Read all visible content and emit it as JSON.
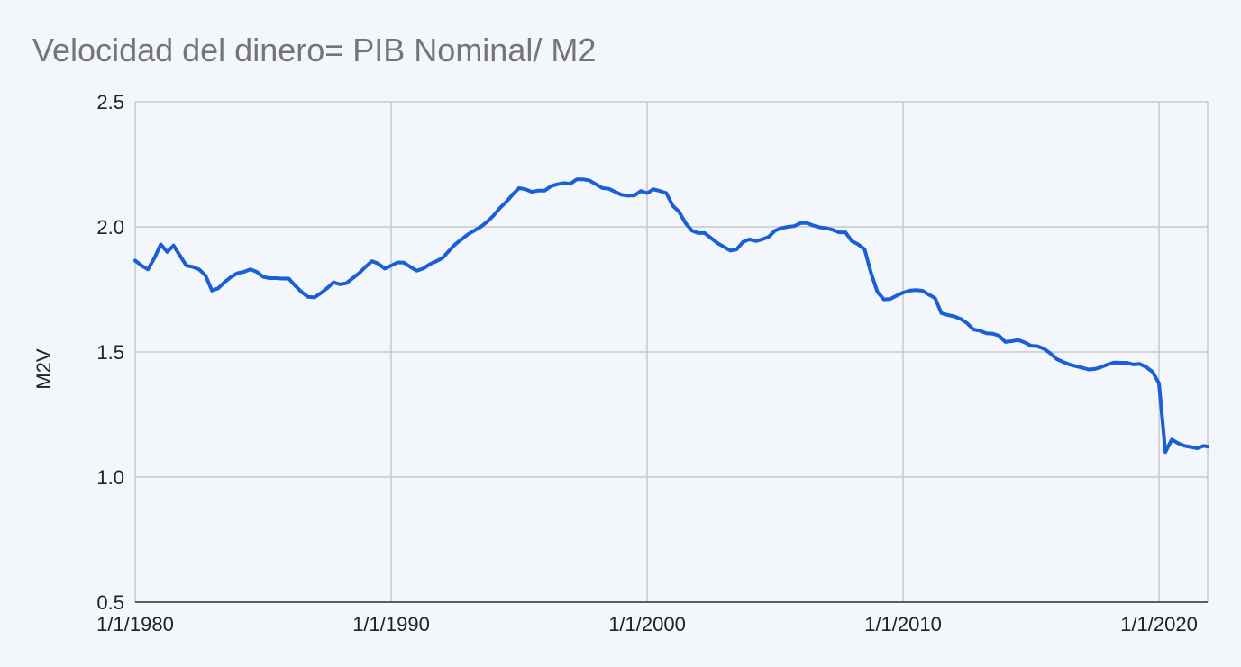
{
  "chart_data": {
    "type": "line",
    "title": "Velocidad del dinero= PIB Nominal/ M2",
    "xlabel": "",
    "ylabel": "M2V",
    "xlim": [
      1980.0,
      2021.9
    ],
    "ylim": [
      0.5,
      2.5
    ],
    "x_ticks": [
      "1/1/1980",
      "1/1/1990",
      "1/1/2000",
      "1/1/2010",
      "1/1/2020"
    ],
    "x_tick_values": [
      1980,
      1990,
      2000,
      2010,
      2020
    ],
    "y_ticks": [
      "0.5",
      "1.0",
      "1.5",
      "2.0",
      "2.5"
    ],
    "y_tick_values": [
      0.5,
      1.0,
      1.5,
      2.0,
      2.5
    ],
    "grid": true,
    "colors": {
      "series": "#1a5fd6",
      "grid": "#c9c9c9",
      "background": "#f3f6fb",
      "title": "#757575"
    },
    "series": [
      {
        "name": "",
        "points": [
          [
            1980.0,
            1.865
          ],
          [
            1980.25,
            1.845
          ],
          [
            1980.5,
            1.83
          ],
          [
            1980.75,
            1.875
          ],
          [
            1981.0,
            1.93
          ],
          [
            1981.25,
            1.9
          ],
          [
            1981.5,
            1.925
          ],
          [
            1981.75,
            1.885
          ],
          [
            1982.0,
            1.845
          ],
          [
            1982.25,
            1.84
          ],
          [
            1982.5,
            1.83
          ],
          [
            1982.75,
            1.805
          ],
          [
            1983.0,
            1.745
          ],
          [
            1983.25,
            1.755
          ],
          [
            1983.5,
            1.78
          ],
          [
            1983.75,
            1.8
          ],
          [
            1984.0,
            1.815
          ],
          [
            1984.25,
            1.82
          ],
          [
            1984.5,
            1.83
          ],
          [
            1984.75,
            1.82
          ],
          [
            1985.0,
            1.8
          ],
          [
            1985.25,
            1.795
          ],
          [
            1985.5,
            1.795
          ],
          [
            1985.75,
            1.793
          ],
          [
            1986.0,
            1.793
          ],
          [
            1986.25,
            1.765
          ],
          [
            1986.5,
            1.74
          ],
          [
            1986.75,
            1.72
          ],
          [
            1987.0,
            1.718
          ],
          [
            1987.25,
            1.735
          ],
          [
            1987.5,
            1.755
          ],
          [
            1987.75,
            1.778
          ],
          [
            1988.0,
            1.77
          ],
          [
            1988.25,
            1.775
          ],
          [
            1988.5,
            1.795
          ],
          [
            1988.75,
            1.815
          ],
          [
            1989.0,
            1.84
          ],
          [
            1989.25,
            1.863
          ],
          [
            1989.5,
            1.853
          ],
          [
            1989.75,
            1.833
          ],
          [
            1990.0,
            1.845
          ],
          [
            1990.25,
            1.858
          ],
          [
            1990.5,
            1.857
          ],
          [
            1990.75,
            1.84
          ],
          [
            1991.0,
            1.825
          ],
          [
            1991.25,
            1.833
          ],
          [
            1991.5,
            1.85
          ],
          [
            1991.75,
            1.862
          ],
          [
            1992.0,
            1.875
          ],
          [
            1992.25,
            1.903
          ],
          [
            1992.5,
            1.93
          ],
          [
            1992.75,
            1.95
          ],
          [
            1993.0,
            1.97
          ],
          [
            1993.25,
            1.985
          ],
          [
            1993.5,
            2.0
          ],
          [
            1993.75,
            2.02
          ],
          [
            1994.0,
            2.045
          ],
          [
            1994.25,
            2.075
          ],
          [
            1994.5,
            2.1
          ],
          [
            1994.75,
            2.13
          ],
          [
            1995.0,
            2.155
          ],
          [
            1995.25,
            2.15
          ],
          [
            1995.5,
            2.14
          ],
          [
            1995.75,
            2.145
          ],
          [
            1996.0,
            2.145
          ],
          [
            1996.25,
            2.163
          ],
          [
            1996.5,
            2.17
          ],
          [
            1996.75,
            2.175
          ],
          [
            1997.0,
            2.172
          ],
          [
            1997.25,
            2.19
          ],
          [
            1997.5,
            2.19
          ],
          [
            1997.75,
            2.185
          ],
          [
            1998.0,
            2.17
          ],
          [
            1998.25,
            2.155
          ],
          [
            1998.5,
            2.152
          ],
          [
            1998.75,
            2.14
          ],
          [
            1999.0,
            2.128
          ],
          [
            1999.25,
            2.125
          ],
          [
            1999.5,
            2.125
          ],
          [
            1999.75,
            2.143
          ],
          [
            2000.0,
            2.135
          ],
          [
            2000.25,
            2.15
          ],
          [
            2000.5,
            2.143
          ],
          [
            2000.75,
            2.135
          ],
          [
            2001.0,
            2.085
          ],
          [
            2001.25,
            2.06
          ],
          [
            2001.5,
            2.015
          ],
          [
            2001.75,
            1.985
          ],
          [
            2002.0,
            1.975
          ],
          [
            2002.25,
            1.975
          ],
          [
            2002.5,
            1.955
          ],
          [
            2002.75,
            1.935
          ],
          [
            2003.0,
            1.92
          ],
          [
            2003.25,
            1.905
          ],
          [
            2003.5,
            1.91
          ],
          [
            2003.75,
            1.94
          ],
          [
            2004.0,
            1.95
          ],
          [
            2004.25,
            1.943
          ],
          [
            2004.5,
            1.95
          ],
          [
            2004.75,
            1.96
          ],
          [
            2005.0,
            1.985
          ],
          [
            2005.25,
            1.995
          ],
          [
            2005.5,
            2.0
          ],
          [
            2005.75,
            2.003
          ],
          [
            2006.0,
            2.015
          ],
          [
            2006.25,
            2.015
          ],
          [
            2006.5,
            2.005
          ],
          [
            2006.75,
            1.998
          ],
          [
            2007.0,
            1.995
          ],
          [
            2007.25,
            1.988
          ],
          [
            2007.5,
            1.978
          ],
          [
            2007.75,
            1.978
          ],
          [
            2008.0,
            1.943
          ],
          [
            2008.25,
            1.93
          ],
          [
            2008.5,
            1.91
          ],
          [
            2008.75,
            1.815
          ],
          [
            2009.0,
            1.74
          ],
          [
            2009.25,
            1.71
          ],
          [
            2009.5,
            1.712
          ],
          [
            2009.75,
            1.725
          ],
          [
            2010.0,
            1.737
          ],
          [
            2010.25,
            1.745
          ],
          [
            2010.5,
            1.747
          ],
          [
            2010.75,
            1.745
          ],
          [
            2011.0,
            1.73
          ],
          [
            2011.25,
            1.715
          ],
          [
            2011.5,
            1.655
          ],
          [
            2011.75,
            1.648
          ],
          [
            2012.0,
            1.642
          ],
          [
            2012.25,
            1.632
          ],
          [
            2012.5,
            1.615
          ],
          [
            2012.75,
            1.59
          ],
          [
            2013.0,
            1.585
          ],
          [
            2013.25,
            1.575
          ],
          [
            2013.5,
            1.573
          ],
          [
            2013.75,
            1.565
          ],
          [
            2014.0,
            1.54
          ],
          [
            2014.25,
            1.543
          ],
          [
            2014.5,
            1.548
          ],
          [
            2014.75,
            1.538
          ],
          [
            2015.0,
            1.525
          ],
          [
            2015.25,
            1.523
          ],
          [
            2015.5,
            1.513
          ],
          [
            2015.75,
            1.495
          ],
          [
            2016.0,
            1.472
          ],
          [
            2016.25,
            1.46
          ],
          [
            2016.5,
            1.45
          ],
          [
            2016.75,
            1.443
          ],
          [
            2017.0,
            1.437
          ],
          [
            2017.25,
            1.43
          ],
          [
            2017.5,
            1.432
          ],
          [
            2017.75,
            1.44
          ],
          [
            2018.0,
            1.45
          ],
          [
            2018.25,
            1.458
          ],
          [
            2018.5,
            1.457
          ],
          [
            2018.75,
            1.457
          ],
          [
            2019.0,
            1.45
          ],
          [
            2019.25,
            1.452
          ],
          [
            2019.5,
            1.44
          ],
          [
            2019.75,
            1.42
          ],
          [
            2020.0,
            1.375
          ],
          [
            2020.25,
            1.1
          ],
          [
            2020.5,
            1.15
          ],
          [
            2020.75,
            1.135
          ],
          [
            2021.0,
            1.125
          ],
          [
            2021.25,
            1.12
          ],
          [
            2021.5,
            1.115
          ],
          [
            2021.75,
            1.125
          ],
          [
            2021.9,
            1.122
          ]
        ]
      }
    ]
  }
}
